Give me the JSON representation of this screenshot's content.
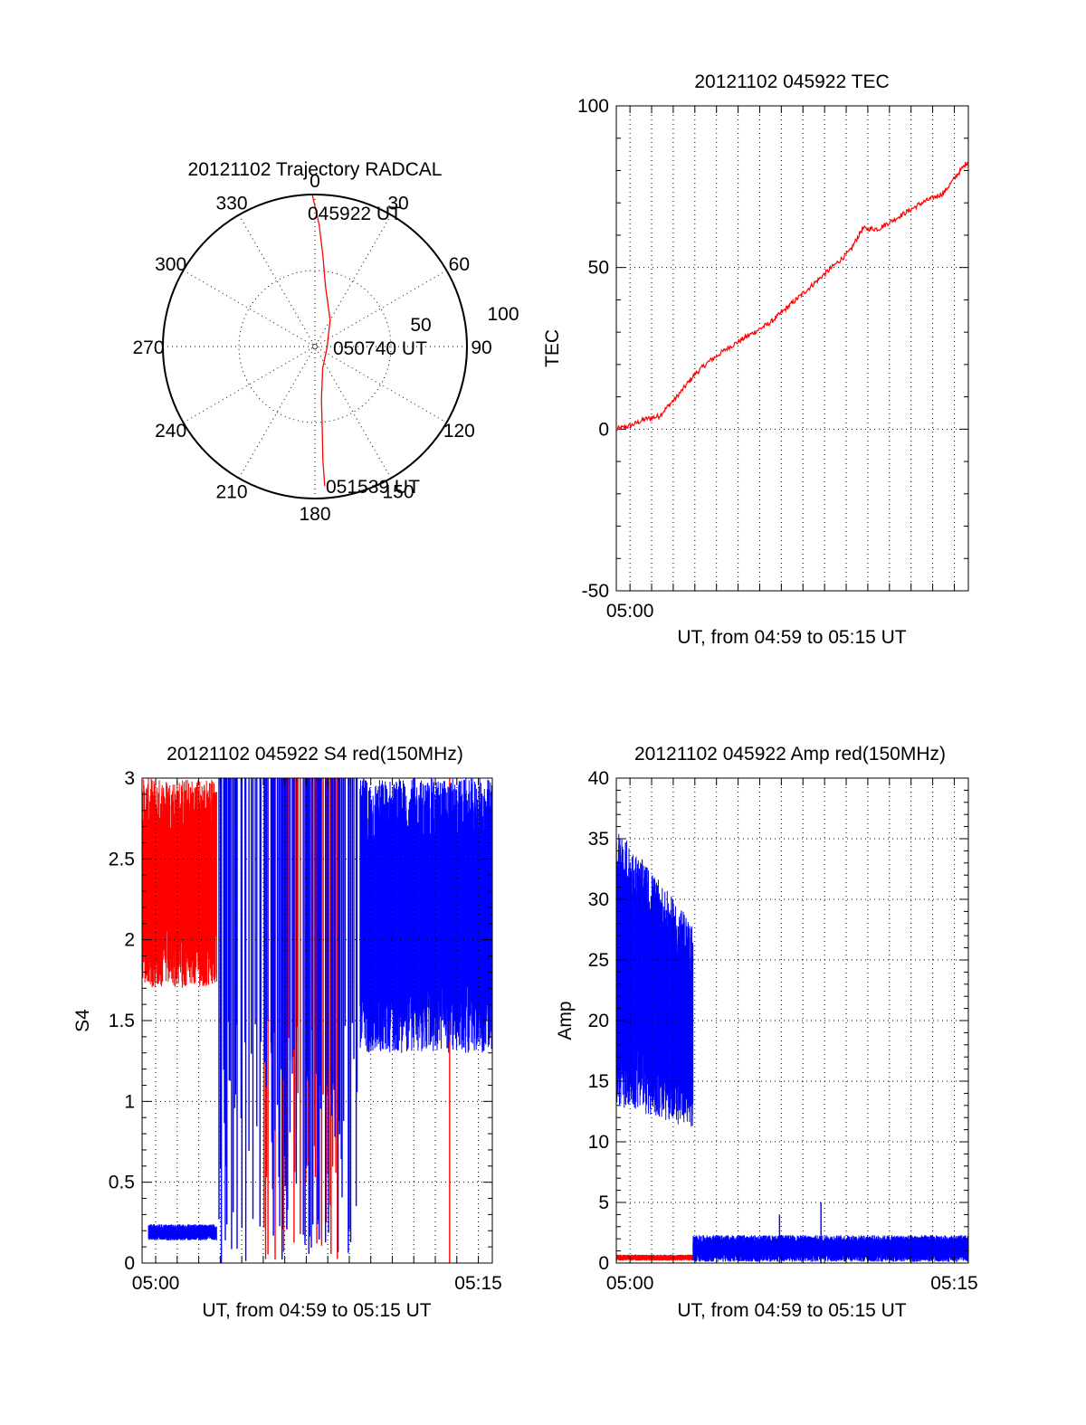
{
  "colors": {
    "red": "#ff0000",
    "blue": "#0000ff",
    "axis": "#000000"
  },
  "chart_data": [
    {
      "id": "trajectory",
      "type": "polar",
      "title": "20121102 Trajectory RADCAL",
      "azimuth_labels": [
        "0",
        "30",
        "60",
        "90",
        "120",
        "150",
        "180",
        "210",
        "240",
        "270",
        "300",
        "330"
      ],
      "radial_labels": [
        "50",
        "100"
      ],
      "r_max": 100,
      "annotations": [
        {
          "text": "045922 UT",
          "az": 0,
          "r": 98
        },
        {
          "text": "050740 UT",
          "az": 170,
          "r": 6
        },
        {
          "text": "051539 UT",
          "az": 175,
          "r": 92
        }
      ],
      "series": [
        {
          "color": "red",
          "points": [
            [
              359,
              100
            ],
            [
              2,
              80
            ],
            [
              5,
              60
            ],
            [
              10,
              40
            ],
            [
              30,
              20
            ],
            [
              100,
              8
            ],
            [
              160,
              15
            ],
            [
              173,
              35
            ],
            [
              175,
              55
            ],
            [
              176,
              75
            ],
            [
              176,
              92
            ]
          ]
        }
      ]
    },
    {
      "id": "tec",
      "type": "line",
      "title": "20121102 045922 TEC",
      "xlabel": "UT, from 04:59 to 05:15 UT",
      "ylabel": "TEC",
      "xlim": [
        "04:59:22",
        "05:15:39"
      ],
      "ylim": [
        -50,
        100
      ],
      "yticks": [
        "-50",
        "0",
        "50",
        "100"
      ],
      "xticks": [
        {
          "t": "05:00:00",
          "label": "05:00"
        }
      ],
      "series": [
        {
          "color": "red",
          "t": [
            "04:59:22",
            "05:00:00",
            "05:00:40",
            "05:01:20",
            "05:02:10",
            "05:03:00",
            "05:03:40",
            "05:04:30",
            "05:05:30",
            "05:06:30",
            "05:07:30",
            "05:08:30",
            "05:09:30",
            "05:10:10",
            "05:10:45",
            "05:11:30",
            "05:12:30",
            "05:13:30",
            "05:14:30",
            "05:15:10",
            "05:15:39"
          ],
          "v": [
            0,
            1,
            3,
            4,
            10,
            17,
            21,
            25,
            29,
            33,
            39,
            45,
            51,
            55,
            62,
            62,
            66,
            70,
            73,
            79,
            83
          ]
        }
      ]
    },
    {
      "id": "s4",
      "type": "line",
      "title": "20121102 045922 S4 red(150MHz)",
      "xlabel": "UT, from 04:59 to 05:15 UT",
      "ylabel": "S4",
      "xlim": [
        "04:59:22",
        "05:15:39"
      ],
      "ylim": [
        0,
        3
      ],
      "yticks": [
        "0",
        "0.5",
        "1",
        "1.5",
        "2",
        "2.5",
        "3"
      ],
      "xticks": [
        {
          "t": "05:00:00",
          "label": "05:00"
        },
        {
          "t": "05:15:00",
          "label": "05:15"
        }
      ],
      "series": [
        {
          "color": "red",
          "name": "red(150MHz)",
          "segments": [
            {
              "from": "04:59:22",
              "to": "05:02:50",
              "min": 1.7,
              "max": 3.0
            },
            {
              "from": "05:05:00",
              "to": "05:08:30",
              "min": 0.0,
              "max": 3.0,
              "sparse": true
            }
          ],
          "spikes": [
            "05:13:40"
          ]
        },
        {
          "color": "blue",
          "segments": [
            {
              "from": "04:59:40",
              "to": "05:02:50",
              "min": 0.14,
              "max": 0.24
            },
            {
              "from": "05:02:50",
              "to": "05:09:30",
              "min": 0.0,
              "max": 3.0,
              "sparse": true
            },
            {
              "from": "05:09:30",
              "to": "05:15:39",
              "min": 1.3,
              "max": 3.0
            }
          ]
        }
      ]
    },
    {
      "id": "amp",
      "type": "line",
      "title": "20121102 045922 Amp red(150MHz)",
      "xlabel": "UT, from 04:59 to 05:15 UT",
      "ylabel": "Amp",
      "xlim": [
        "04:59:22",
        "05:15:39"
      ],
      "ylim": [
        0,
        40
      ],
      "yticks": [
        "0",
        "5",
        "10",
        "15",
        "20",
        "25",
        "30",
        "35",
        "40"
      ],
      "xticks": [
        {
          "t": "05:00:00",
          "label": "05:00"
        },
        {
          "t": "05:15:00",
          "label": "05:15"
        }
      ],
      "series": [
        {
          "color": "red",
          "name": "red(150MHz)",
          "segments": [
            {
              "from": "04:59:22",
              "to": "05:02:55",
              "min": 0.2,
              "max": 0.7
            }
          ]
        },
        {
          "color": "blue",
          "segments": [
            {
              "from": "04:59:22",
              "to": "05:02:55",
              "min": 11,
              "max": 36,
              "trend": "down"
            },
            {
              "from": "05:02:55",
              "to": "05:15:39",
              "min": 0.1,
              "max": 2.3
            }
          ],
          "spikes": [
            {
              "t": "05:06:55",
              "v": 4
            },
            {
              "t": "05:08:50",
              "v": 5
            }
          ]
        }
      ]
    }
  ]
}
